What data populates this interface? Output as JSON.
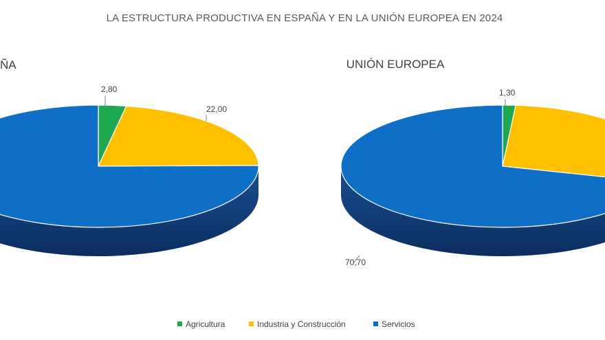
{
  "chart_data": {
    "type": "pie",
    "title": "LA ESTRUCTURA PRODUCTIVA EN ESPAÑA Y EN LA UNIÓN EUROPEA EN 2024",
    "categories": [
      "Agricultura",
      "Industria y Construcción",
      "Servicios"
    ],
    "colors": [
      "#1fa84f",
      "#ffc000",
      "#0f6fc6"
    ],
    "legend_position": "bottom",
    "pies": [
      {
        "title": "ESPAÑA",
        "visible_title": "ÑA",
        "values": [
          2.8,
          22.0,
          75.2
        ],
        "labels": [
          "2,80",
          "22,00",
          ""
        ]
      },
      {
        "title": "UNIÓN EUROPEA",
        "visible_title": "UNIÓN EUROPEA",
        "values": [
          1.3,
          28.0,
          70.7
        ],
        "labels": [
          "1,30",
          "",
          "70,70"
        ]
      }
    ]
  }
}
